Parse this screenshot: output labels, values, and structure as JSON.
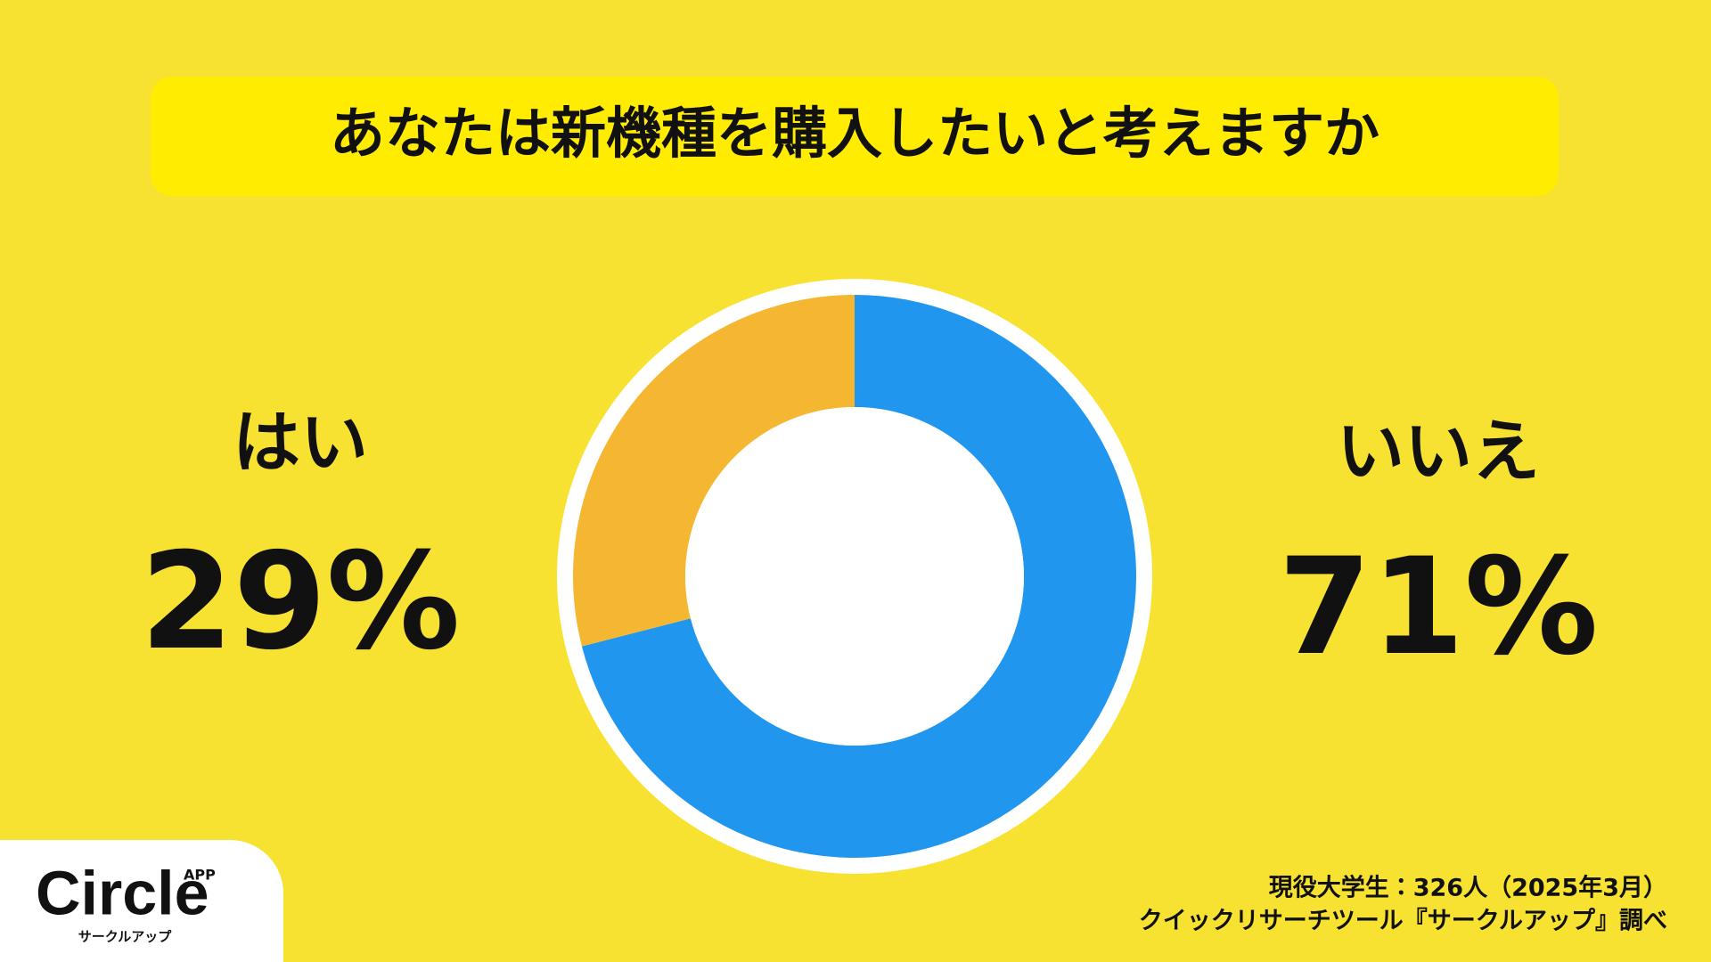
{
  "chart_data": {
    "type": "donut",
    "title": "あなたは新機種を購入したいと考えますか",
    "categories": [
      "はい",
      "いいえ"
    ],
    "values": [
      29,
      71
    ],
    "value_labels": [
      "29%",
      "71%"
    ],
    "colors": [
      "#F5B731",
      "#2196EE"
    ]
  },
  "source": [
    "現役大学生：326人（2025年3月）",
    "クイックリサーチツール『サークルアップ』調べ"
  ],
  "logo": {
    "name": "Circle",
    "badge": "APP",
    "subtitle": "サークルアップ"
  }
}
